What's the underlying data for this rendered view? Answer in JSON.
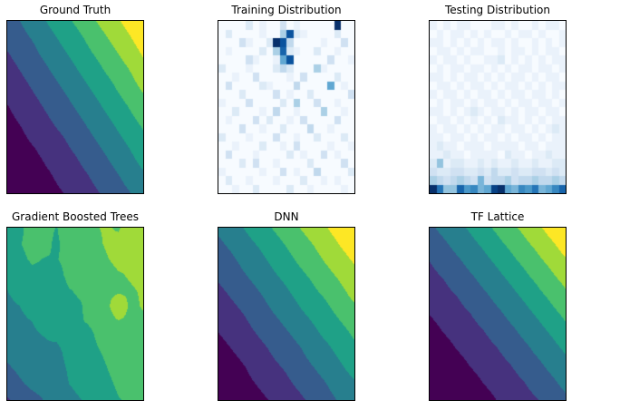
{
  "colors": {
    "background": "#ffffff",
    "panel_border": "#000000",
    "title_text": "#000000",
    "viridis8": [
      "#440154",
      "#46327e",
      "#365c8d",
      "#277f8e",
      "#1fa187",
      "#4ac16d",
      "#a0da39",
      "#fde725"
    ],
    "blues": [
      "#f7fbff",
      "#deebf7",
      "#c6dbef",
      "#9ecae1",
      "#6baed6",
      "#4292c6",
      "#2171b5",
      "#08519c",
      "#08306b"
    ]
  },
  "chart_data": [
    {
      "type": "heatmap",
      "title": "Ground Truth",
      "render": "contour-bilinear",
      "colormap": "viridis",
      "levels": 8,
      "value_range": [
        0,
        1
      ],
      "grid": [
        [
          0.33,
          0.38,
          0.44,
          0.51,
          0.57,
          0.64,
          0.71,
          0.78,
          0.85,
          0.92,
          1.0
        ],
        [
          0.28,
          0.34,
          0.39,
          0.46,
          0.52,
          0.58,
          0.65,
          0.72,
          0.79,
          0.86,
          0.94
        ],
        [
          0.24,
          0.29,
          0.35,
          0.41,
          0.47,
          0.53,
          0.6,
          0.66,
          0.73,
          0.8,
          0.88
        ],
        [
          0.2,
          0.25,
          0.3,
          0.36,
          0.42,
          0.48,
          0.54,
          0.61,
          0.67,
          0.74,
          0.82
        ],
        [
          0.16,
          0.21,
          0.26,
          0.31,
          0.37,
          0.43,
          0.49,
          0.55,
          0.62,
          0.69,
          0.76
        ],
        [
          0.12,
          0.17,
          0.22,
          0.27,
          0.32,
          0.38,
          0.44,
          0.5,
          0.56,
          0.63,
          0.7
        ],
        [
          0.09,
          0.13,
          0.18,
          0.23,
          0.28,
          0.33,
          0.39,
          0.45,
          0.51,
          0.58,
          0.64
        ],
        [
          0.06,
          0.1,
          0.14,
          0.19,
          0.23,
          0.29,
          0.34,
          0.4,
          0.46,
          0.52,
          0.59
        ],
        [
          0.03,
          0.07,
          0.1,
          0.15,
          0.19,
          0.24,
          0.3,
          0.35,
          0.41,
          0.47,
          0.54
        ],
        [
          0.01,
          0.04,
          0.07,
          0.11,
          0.16,
          0.2,
          0.25,
          0.31,
          0.36,
          0.42,
          0.48
        ],
        [
          0.0,
          0.02,
          0.05,
          0.08,
          0.12,
          0.16,
          0.21,
          0.26,
          0.32,
          0.37,
          0.43
        ]
      ]
    },
    {
      "type": "heatmap",
      "title": "Training Distribution",
      "render": "cells",
      "colormap": "blues",
      "encoding": "hex-digit-0-15-per-cell",
      "rows": [
        "00002010030100000f00",
        "0200001005d210000200",
        "00031002fd4000010030",
        "010000205c2100200100",
        "0000310018d000003001",
        "20001000242000510000",
        "00100300001030000200",
        "03000021000400008010",
        "00020000301002000003",
        "10003000020500300100",
        "00200010400100050010",
        "01000302001030000300",
        "00030010020004001000",
        "20001000300100200020",
        "00100020010300001001",
        "03000100002010030100",
        "00020300100002000030",
        "10000010030100400002",
        "02001000100020010100",
        "00100200002001000010"
      ]
    },
    {
      "type": "heatmap",
      "title": "Testing Distribution",
      "render": "cells",
      "colormap": "blues",
      "encoding": "hex-digit-0-15-per-cell",
      "rows": [
        "10101100011010010110",
        "01011010100101101001",
        "11010101011010010101",
        "01101011001011010110",
        "10110100112010101011",
        "01011011010101101101",
        "11010110101011010110",
        "01101011010110101011",
        "10110101101011011010",
        "01011010110101101101",
        "11010121011010110110",
        "01101010102110101011",
        "10110101011011010121",
        "11011010110101101011",
        "12110111011110110111",
        "11211011110211011211",
        "26122112121121121122",
        "32233223242232233232",
        "54345437344534454454",
        "fb66c9a78ef87a9b78ac"
      ]
    },
    {
      "type": "heatmap",
      "title": "Gradient Boosted Trees",
      "render": "contour-bilinear",
      "colormap": "viridis",
      "levels": 8,
      "value_range": [
        0,
        1
      ],
      "grid": [
        [
          0.62,
          0.6,
          0.68,
          0.66,
          0.62,
          0.72,
          0.7,
          0.74,
          0.76,
          0.74,
          0.8,
          0.8
        ],
        [
          0.6,
          0.62,
          0.66,
          0.66,
          0.6,
          0.7,
          0.7,
          0.72,
          0.76,
          0.78,
          0.78,
          0.82
        ],
        [
          0.55,
          0.6,
          0.64,
          0.62,
          0.62,
          0.66,
          0.68,
          0.7,
          0.74,
          0.78,
          0.76,
          0.78
        ],
        [
          0.54,
          0.55,
          0.6,
          0.6,
          0.58,
          0.66,
          0.64,
          0.7,
          0.7,
          0.74,
          0.76,
          0.78
        ],
        [
          0.5,
          0.54,
          0.55,
          0.58,
          0.55,
          0.62,
          0.64,
          0.66,
          0.72,
          0.72,
          0.74,
          0.76
        ],
        [
          0.48,
          0.5,
          0.54,
          0.55,
          0.56,
          0.6,
          0.62,
          0.68,
          0.7,
          0.86,
          0.72,
          0.76
        ],
        [
          0.46,
          0.48,
          0.5,
          0.54,
          0.52,
          0.58,
          0.62,
          0.64,
          0.68,
          0.74,
          0.72,
          0.72
        ],
        [
          0.42,
          0.46,
          0.48,
          0.5,
          0.52,
          0.56,
          0.58,
          0.62,
          0.68,
          0.7,
          0.7,
          0.72
        ],
        [
          0.4,
          0.42,
          0.46,
          0.48,
          0.46,
          0.55,
          0.55,
          0.6,
          0.64,
          0.68,
          0.7,
          0.7
        ],
        [
          0.36,
          0.4,
          0.42,
          0.46,
          0.44,
          0.52,
          0.55,
          0.58,
          0.62,
          0.66,
          0.68,
          0.68
        ],
        [
          0.3,
          0.36,
          0.4,
          0.42,
          0.42,
          0.5,
          0.52,
          0.56,
          0.6,
          0.64,
          0.66,
          0.66
        ],
        [
          0.24,
          0.3,
          0.34,
          0.38,
          0.4,
          0.48,
          0.5,
          0.52,
          0.58,
          0.62,
          0.64,
          0.64
        ]
      ]
    },
    {
      "type": "heatmap",
      "title": "DNN",
      "render": "contour-bilinear",
      "colormap": "viridis",
      "levels": 8,
      "value_range": [
        0,
        1
      ],
      "grid": [
        [
          0.4,
          0.45,
          0.51,
          0.57,
          0.63,
          0.69,
          0.75,
          0.81,
          0.87,
          0.94,
          1.0
        ],
        [
          0.35,
          0.4,
          0.46,
          0.51,
          0.57,
          0.63,
          0.69,
          0.75,
          0.81,
          0.88,
          0.94
        ],
        [
          0.3,
          0.35,
          0.41,
          0.46,
          0.52,
          0.58,
          0.64,
          0.7,
          0.76,
          0.82,
          0.88
        ],
        [
          0.26,
          0.31,
          0.36,
          0.41,
          0.47,
          0.52,
          0.58,
          0.64,
          0.7,
          0.76,
          0.82
        ],
        [
          0.21,
          0.26,
          0.31,
          0.36,
          0.42,
          0.47,
          0.53,
          0.59,
          0.64,
          0.71,
          0.77
        ],
        [
          0.17,
          0.21,
          0.26,
          0.31,
          0.37,
          0.42,
          0.48,
          0.53,
          0.59,
          0.65,
          0.71
        ],
        [
          0.13,
          0.17,
          0.22,
          0.27,
          0.32,
          0.37,
          0.42,
          0.48,
          0.54,
          0.59,
          0.65
        ],
        [
          0.09,
          0.13,
          0.17,
          0.22,
          0.27,
          0.32,
          0.37,
          0.43,
          0.48,
          0.54,
          0.6
        ],
        [
          0.05,
          0.09,
          0.13,
          0.18,
          0.23,
          0.27,
          0.33,
          0.38,
          0.43,
          0.49,
          0.55
        ],
        [
          0.02,
          0.06,
          0.1,
          0.14,
          0.18,
          0.23,
          0.28,
          0.33,
          0.38,
          0.44,
          0.49
        ],
        [
          0.0,
          0.03,
          0.06,
          0.1,
          0.14,
          0.19,
          0.23,
          0.28,
          0.34,
          0.39,
          0.44
        ]
      ]
    },
    {
      "type": "heatmap",
      "title": "TF Lattice",
      "render": "contour-bilinear",
      "colormap": "viridis",
      "levels": 8,
      "value_range": [
        0,
        1
      ],
      "grid": [
        [
          0.35,
          0.41,
          0.46,
          0.52,
          0.59,
          0.65,
          0.72,
          0.78,
          0.85,
          0.93,
          1.0
        ],
        [
          0.3,
          0.35,
          0.41,
          0.46,
          0.52,
          0.59,
          0.65,
          0.72,
          0.78,
          0.85,
          0.93
        ],
        [
          0.25,
          0.3,
          0.35,
          0.41,
          0.46,
          0.52,
          0.59,
          0.65,
          0.72,
          0.78,
          0.85
        ],
        [
          0.21,
          0.25,
          0.3,
          0.35,
          0.41,
          0.46,
          0.52,
          0.59,
          0.65,
          0.72,
          0.78
        ],
        [
          0.16,
          0.21,
          0.25,
          0.3,
          0.35,
          0.41,
          0.46,
          0.52,
          0.59,
          0.65,
          0.72
        ],
        [
          0.13,
          0.16,
          0.21,
          0.25,
          0.3,
          0.35,
          0.41,
          0.46,
          0.52,
          0.59,
          0.65
        ],
        [
          0.09,
          0.13,
          0.16,
          0.21,
          0.25,
          0.3,
          0.35,
          0.41,
          0.46,
          0.52,
          0.59
        ],
        [
          0.06,
          0.09,
          0.13,
          0.16,
          0.21,
          0.25,
          0.3,
          0.35,
          0.41,
          0.46,
          0.52
        ],
        [
          0.03,
          0.06,
          0.09,
          0.13,
          0.16,
          0.21,
          0.25,
          0.3,
          0.35,
          0.41,
          0.46
        ],
        [
          0.01,
          0.03,
          0.06,
          0.09,
          0.13,
          0.16,
          0.21,
          0.25,
          0.3,
          0.35,
          0.41
        ],
        [
          0.0,
          0.01,
          0.03,
          0.06,
          0.09,
          0.13,
          0.16,
          0.21,
          0.25,
          0.3,
          0.35
        ]
      ]
    }
  ]
}
